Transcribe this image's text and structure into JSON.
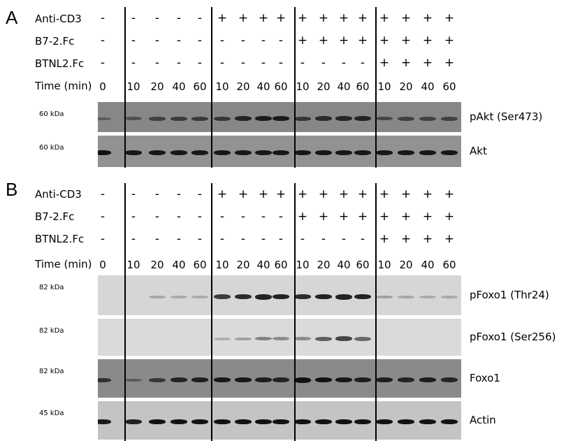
{
  "panels": [
    {
      "letter": "A",
      "conditions": [
        {
          "label": "Anti-CD3",
          "values": [
            "-",
            "-",
            "-",
            "-",
            "-",
            "+",
            "+",
            "+",
            "+",
            "+",
            "+",
            "+",
            "+",
            "+",
            "+",
            "+",
            "+"
          ]
        },
        {
          "label": "B7-2.Fc",
          "values": [
            "-",
            "-",
            "-",
            "-",
            "-",
            "-",
            "-",
            "-",
            "-",
            "+",
            "+",
            "+",
            "+",
            "+",
            "+",
            "+",
            "+"
          ]
        },
        {
          "label": "BTNL2.Fc",
          "values": [
            "-",
            "-",
            "-",
            "-",
            "-",
            "-",
            "-",
            "-",
            "-",
            "-",
            "-",
            "-",
            "-",
            "+",
            "+",
            "+",
            "+"
          ]
        }
      ],
      "time_label": "Time (min)",
      "times": [
        "0",
        "10",
        "20",
        "40",
        "60",
        "10",
        "20",
        "40",
        "60",
        "10",
        "20",
        "40",
        "60",
        "10",
        "20",
        "40",
        "60"
      ],
      "blots": [
        {
          "name": "pAkt (Ser473)",
          "kda": "60 kDa",
          "background": "#878787",
          "band_color": "#1a1a1a",
          "intensities": [
            0.25,
            0.35,
            0.5,
            0.55,
            0.55,
            0.6,
            0.75,
            0.85,
            0.85,
            0.6,
            0.7,
            0.75,
            0.75,
            0.45,
            0.5,
            0.5,
            0.5
          ]
        },
        {
          "name": "Akt",
          "kda": "60 kDa",
          "background": "#929292",
          "band_color": "#111111",
          "intensities": [
            0.85,
            0.8,
            0.8,
            0.8,
            0.8,
            0.8,
            0.8,
            0.8,
            0.8,
            0.8,
            0.8,
            0.8,
            0.8,
            0.8,
            0.8,
            0.8,
            0.8
          ]
        }
      ]
    },
    {
      "letter": "B",
      "conditions": [
        {
          "label": "Anti-CD3",
          "values": [
            "-",
            "-",
            "-",
            "-",
            "-",
            "+",
            "+",
            "+",
            "+",
            "+",
            "+",
            "+",
            "+",
            "+",
            "+",
            "+",
            "+"
          ]
        },
        {
          "label": "B7-2.Fc",
          "values": [
            "-",
            "-",
            "-",
            "-",
            "-",
            "-",
            "-",
            "-",
            "-",
            "+",
            "+",
            "+",
            "+",
            "+",
            "+",
            "+",
            "+"
          ]
        },
        {
          "label": "BTNL2.Fc",
          "values": [
            "-",
            "-",
            "-",
            "-",
            "-",
            "-",
            "-",
            "-",
            "-",
            "-",
            "-",
            "-",
            "-",
            "+",
            "+",
            "+",
            "+"
          ]
        }
      ],
      "time_label": "Time (min)",
      "times": [
        "0",
        "10",
        "20",
        "40",
        "60",
        "10",
        "20",
        "40",
        "60",
        "10",
        "20",
        "40",
        "60",
        "10",
        "20",
        "40",
        "60"
      ],
      "blots": [
        {
          "name": "pFoxo1 (Thr24)",
          "kda": "82 kDa",
          "background": "#d6d6d6",
          "band_color": "#222222",
          "intensities": [
            0,
            0,
            0.12,
            0.1,
            0.1,
            0.7,
            0.8,
            0.9,
            0.85,
            0.8,
            0.85,
            0.9,
            0.85,
            0.15,
            0.12,
            0.1,
            0.1
          ]
        },
        {
          "name": "pFoxo1 (Ser256)",
          "kda": "82 kDa",
          "background": "#dadada",
          "band_color": "#2a2a2a",
          "intensities": [
            0,
            0,
            0,
            0,
            0,
            0.1,
            0.2,
            0.35,
            0.3,
            0.3,
            0.55,
            0.7,
            0.5,
            0,
            0,
            0,
            0
          ]
        },
        {
          "name": "Foxo1",
          "kda": "82 kDa",
          "background": "#8a8a8a",
          "band_color": "#111111",
          "intensities": [
            0.6,
            0.25,
            0.55,
            0.7,
            0.75,
            0.8,
            0.8,
            0.75,
            0.7,
            0.9,
            0.85,
            0.8,
            0.75,
            0.75,
            0.7,
            0.75,
            0.7
          ]
        },
        {
          "name": "Actin",
          "kda": "45 kDa",
          "background": "#c4c4c4",
          "band_color": "#111111",
          "intensities": [
            0.8,
            0.75,
            0.85,
            0.85,
            0.85,
            0.85,
            0.85,
            0.85,
            0.85,
            0.85,
            0.85,
            0.85,
            0.85,
            0.85,
            0.85,
            0.85,
            0.85
          ]
        }
      ]
    }
  ]
}
